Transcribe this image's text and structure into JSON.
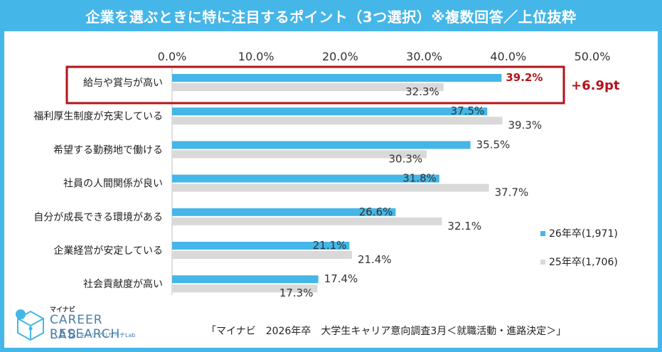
{
  "title": "企業を選ぶときに特に注目するポイント（3つ選択）※複数回答／上位抜粋",
  "source": "「マイナビ　2026年卒　大学生キャリア意向調査3月＜就職活動・進路決定＞」",
  "logo": {
    "brand": "マイナビ",
    "line1": "CAREER RESEARCH",
    "line2": "LAB",
    "sub": "キャリアリサーチLab"
  },
  "colors": {
    "series_2026": "#45b6e8",
    "series_2025": "#d9d9d9",
    "highlight": "#b2141a"
  },
  "chart_data": {
    "type": "bar",
    "orientation": "horizontal",
    "xlim": [
      0,
      50
    ],
    "ticks": [
      "0.0%",
      "10.0%",
      "20.0%",
      "30.0%",
      "40.0%",
      "50.0%"
    ],
    "categories": [
      "給与や賞与が高い",
      "福利厚生制度が充実している",
      "希望する勤務地で働ける",
      "社員の人間関係が良い",
      "自分が成長できる環境がある",
      "企業経営が安定している",
      "社会貢献度が高い"
    ],
    "series": [
      {
        "name": "26年卒(1,971)",
        "values": [
          39.2,
          37.5,
          35.5,
          31.8,
          26.6,
          21.1,
          17.4
        ],
        "labels": [
          "39.2%",
          "37.5%",
          "35.5%",
          "31.8%",
          "26.6%",
          "21.1%",
          "17.4%"
        ]
      },
      {
        "name": "25年卒(1,706)",
        "values": [
          32.3,
          39.3,
          30.3,
          37.7,
          32.1,
          21.4,
          17.3
        ],
        "labels": [
          "32.3%",
          "39.3%",
          "30.3%",
          "37.7%",
          "32.1%",
          "21.4%",
          "17.3%"
        ]
      }
    ],
    "highlight": {
      "category_index": 0,
      "annotation": "+6.9pt"
    }
  }
}
